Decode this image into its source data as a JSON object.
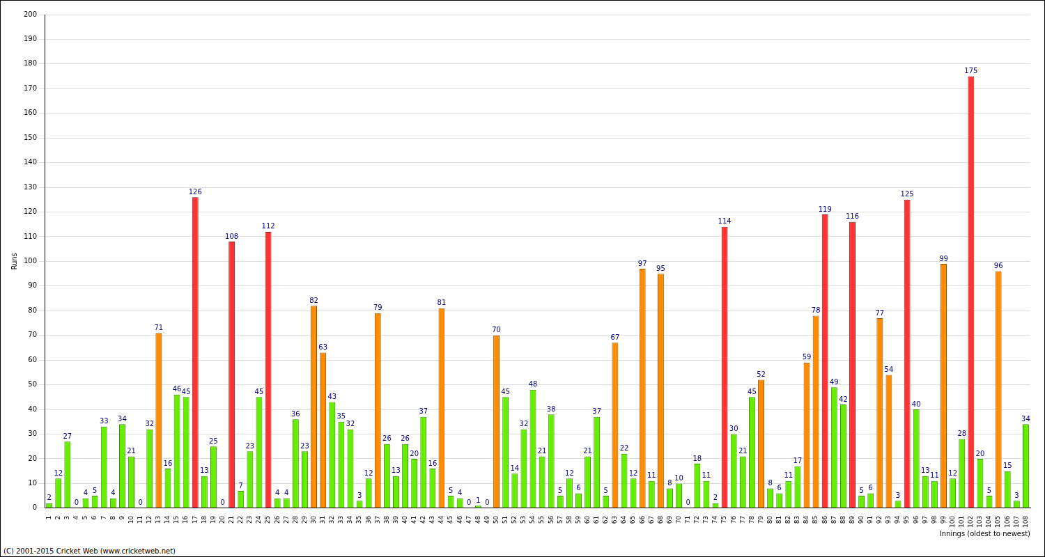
{
  "chart_data": {
    "type": "bar",
    "x_label": "Innings (oldest to newest)",
    "y_label": "Runs",
    "annotations": [
      "(C) 2001-2015 Cricket Web (www.cricketweb.net)"
    ],
    "categories": [
      "1",
      "2",
      "3",
      "4",
      "5",
      "6",
      "7",
      "8",
      "9",
      "10",
      "11",
      "12",
      "13",
      "14",
      "15",
      "16",
      "17",
      "18",
      "19",
      "20",
      "21",
      "22",
      "23",
      "24",
      "25",
      "26",
      "27",
      "28",
      "29",
      "30",
      "31",
      "32",
      "33",
      "34",
      "35",
      "36",
      "37",
      "38",
      "39",
      "40",
      "41",
      "42",
      "43",
      "44",
      "45",
      "46",
      "47",
      "48",
      "49",
      "50",
      "51",
      "52",
      "53",
      "54",
      "55",
      "56",
      "57",
      "58",
      "59",
      "60",
      "61",
      "62",
      "63",
      "64",
      "65",
      "66",
      "67",
      "68",
      "69",
      "70",
      "71",
      "72",
      "73",
      "74",
      "75",
      "76",
      "77",
      "78",
      "79",
      "80",
      "81",
      "82",
      "83",
      "84",
      "85",
      "86",
      "87",
      "88",
      "89",
      "90",
      "91",
      "92",
      "93",
      "94",
      "95",
      "96",
      "97",
      "98",
      "99",
      "100",
      "101",
      "102",
      "103",
      "104",
      "105",
      "106",
      "107",
      "108"
    ],
    "values": [
      2,
      12,
      27,
      0,
      4,
      5,
      33,
      4,
      34,
      21,
      0,
      32,
      71,
      16,
      46,
      45,
      126,
      13,
      25,
      0,
      108,
      7,
      23,
      45,
      112,
      4,
      4,
      36,
      23,
      82,
      63,
      43,
      35,
      32,
      3,
      12,
      79,
      26,
      13,
      26,
      20,
      37,
      16,
      81,
      5,
      4,
      0,
      1,
      0,
      70,
      45,
      14,
      32,
      48,
      21,
      38,
      5,
      12,
      6,
      21,
      37,
      5,
      67,
      22,
      12,
      97,
      11,
      95,
      8,
      10,
      0,
      18,
      11,
      2,
      114,
      30,
      21,
      45,
      52,
      8,
      6,
      11,
      17,
      59,
      78,
      119,
      49,
      42,
      116,
      5,
      6,
      77,
      54,
      3,
      125,
      40,
      13,
      11,
      99,
      12,
      28,
      175,
      20,
      5,
      96,
      15,
      3,
      34
    ],
    "colors": [
      "#66ee00",
      "#66ee00",
      "#66ee00",
      "#66ee00",
      "#66ee00",
      "#66ee00",
      "#66ee00",
      "#66ee00",
      "#66ee00",
      "#66ee00",
      "#66ee00",
      "#66ee00",
      "#ff8c00",
      "#66ee00",
      "#66ee00",
      "#66ee00",
      "#ff3333",
      "#66ee00",
      "#66ee00",
      "#66ee00",
      "#ff3333",
      "#66ee00",
      "#66ee00",
      "#66ee00",
      "#ff3333",
      "#66ee00",
      "#66ee00",
      "#66ee00",
      "#66ee00",
      "#ff8c00",
      "#ff8c00",
      "#66ee00",
      "#66ee00",
      "#66ee00",
      "#66ee00",
      "#66ee00",
      "#ff8c00",
      "#66ee00",
      "#66ee00",
      "#66ee00",
      "#66ee00",
      "#66ee00",
      "#66ee00",
      "#ff8c00",
      "#66ee00",
      "#66ee00",
      "#66ee00",
      "#66ee00",
      "#66ee00",
      "#ff8c00",
      "#66ee00",
      "#66ee00",
      "#66ee00",
      "#66ee00",
      "#66ee00",
      "#66ee00",
      "#66ee00",
      "#66ee00",
      "#66ee00",
      "#66ee00",
      "#66ee00",
      "#66ee00",
      "#ff8c00",
      "#66ee00",
      "#66ee00",
      "#ff8c00",
      "#66ee00",
      "#ff8c00",
      "#66ee00",
      "#66ee00",
      "#66ee00",
      "#66ee00",
      "#66ee00",
      "#66ee00",
      "#ff3333",
      "#66ee00",
      "#66ee00",
      "#66ee00",
      "#ff8c00",
      "#66ee00",
      "#66ee00",
      "#66ee00",
      "#66ee00",
      "#ff8c00",
      "#ff8c00",
      "#ff3333",
      "#66ee00",
      "#66ee00",
      "#ff3333",
      "#66ee00",
      "#66ee00",
      "#ff8c00",
      "#ff8c00",
      "#66ee00",
      "#ff3333",
      "#66ee00",
      "#66ee00",
      "#66ee00",
      "#ff8c00",
      "#66ee00",
      "#66ee00",
      "#ff3333",
      "#66ee00",
      "#66ee00",
      "#ff8c00",
      "#66ee00",
      "#66ee00",
      "#66ee00"
    ],
    "ylim": [
      0,
      200
    ],
    "yticks": [
      0,
      10,
      20,
      30,
      40,
      50,
      60,
      70,
      80,
      90,
      100,
      110,
      120,
      130,
      140,
      150,
      160,
      170,
      180,
      190,
      200
    ],
    "grid": true,
    "data_labels": true
  }
}
